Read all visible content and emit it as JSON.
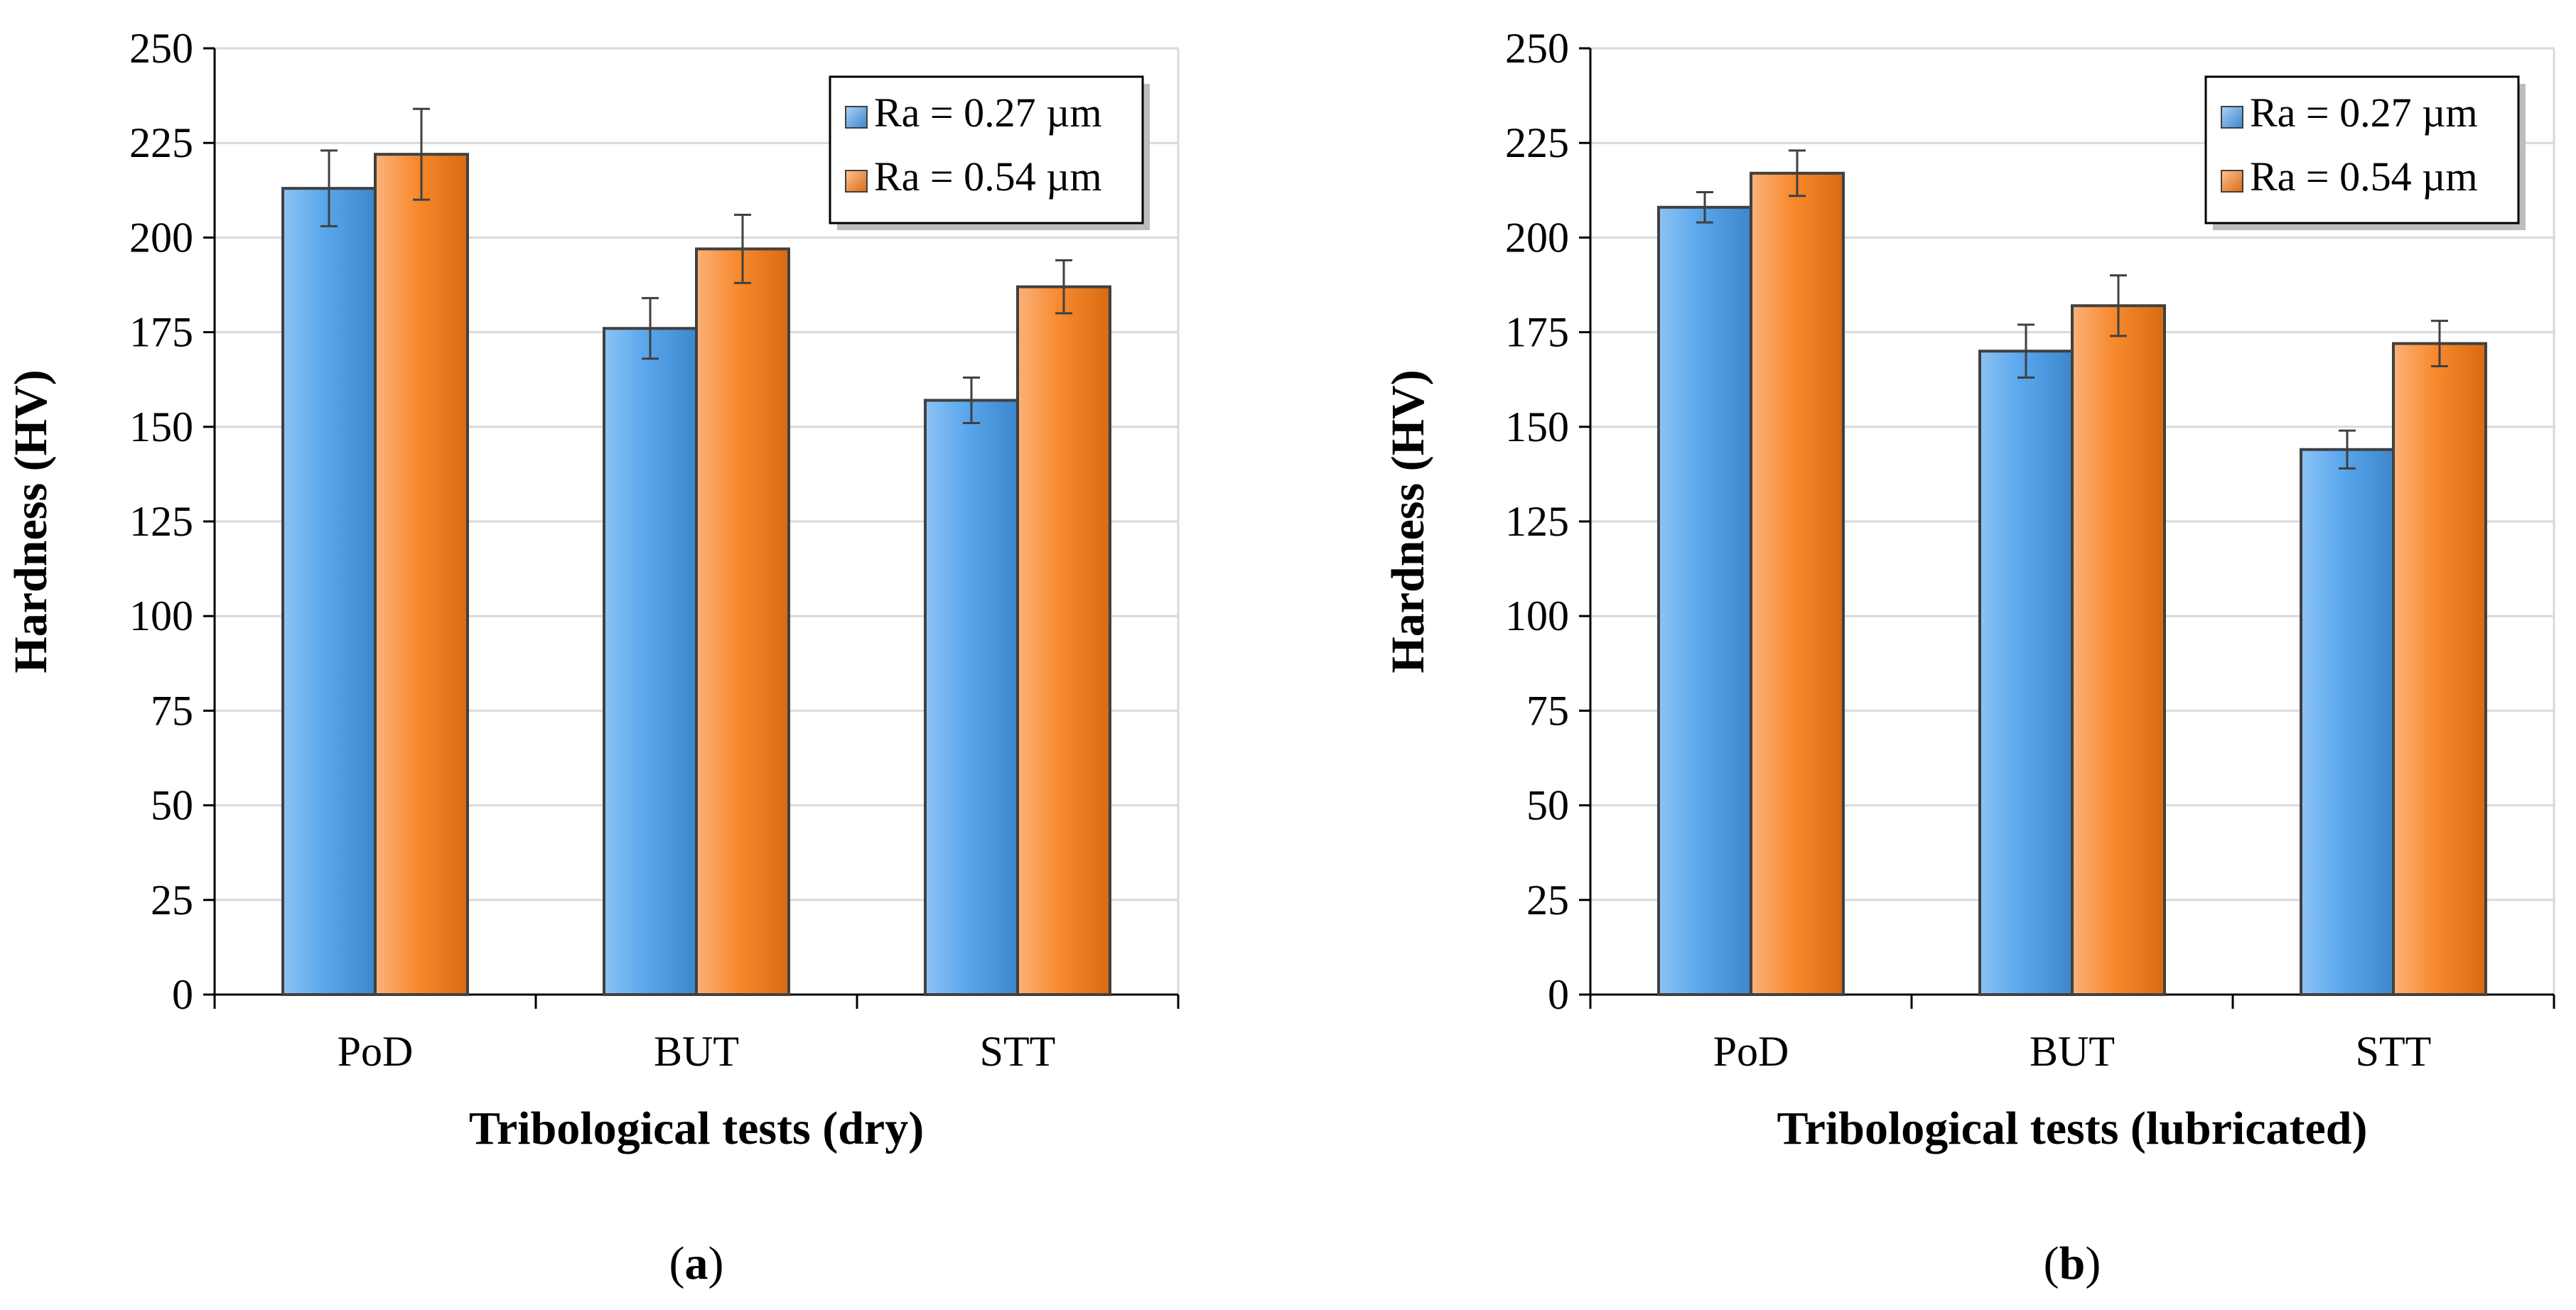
{
  "colors": {
    "series_1": "#5aa6ec",
    "series_2": "#f7892e",
    "gridline": "#d9d9d9",
    "axis": "#000000",
    "bar_edge": "#404040",
    "error_bar": "#404040"
  },
  "chart_data": [
    {
      "panel": "a",
      "type": "bar",
      "categories": [
        "PoD",
        "BUT",
        "STT"
      ],
      "series": [
        {
          "name": "Ra = 0.27 µm",
          "values": [
            213,
            176,
            157
          ],
          "errors": [
            10,
            8,
            6
          ]
        },
        {
          "name": "Ra = 0.54 µm",
          "values": [
            222,
            197,
            187
          ],
          "errors": [
            12,
            9,
            7
          ]
        }
      ],
      "xlabel": "Tribological tests (dry)",
      "ylabel": "Hardness (HV)",
      "ylim": [
        0,
        250
      ],
      "yticks": [
        0,
        25,
        50,
        75,
        100,
        125,
        150,
        175,
        200,
        225,
        250
      ],
      "grid": true,
      "legend_position": "top-right",
      "caption": {
        "open": "(",
        "letter": "a",
        "close": ")"
      }
    },
    {
      "panel": "b",
      "type": "bar",
      "categories": [
        "PoD",
        "BUT",
        "STT"
      ],
      "series": [
        {
          "name": "Ra = 0.27 µm",
          "values": [
            208,
            170,
            144
          ],
          "errors": [
            4,
            7,
            5
          ]
        },
        {
          "name": "Ra = 0.54 µm",
          "values": [
            217,
            182,
            172
          ],
          "errors": [
            6,
            8,
            6
          ]
        }
      ],
      "xlabel": "Tribological tests (lubricated)",
      "ylabel": "Hardness (HV)",
      "ylim": [
        0,
        250
      ],
      "yticks": [
        0,
        25,
        50,
        75,
        100,
        125,
        150,
        175,
        200,
        225,
        250
      ],
      "grid": true,
      "legend_position": "top-right",
      "caption": {
        "open": "(",
        "letter": "b",
        "close": ")"
      }
    }
  ]
}
